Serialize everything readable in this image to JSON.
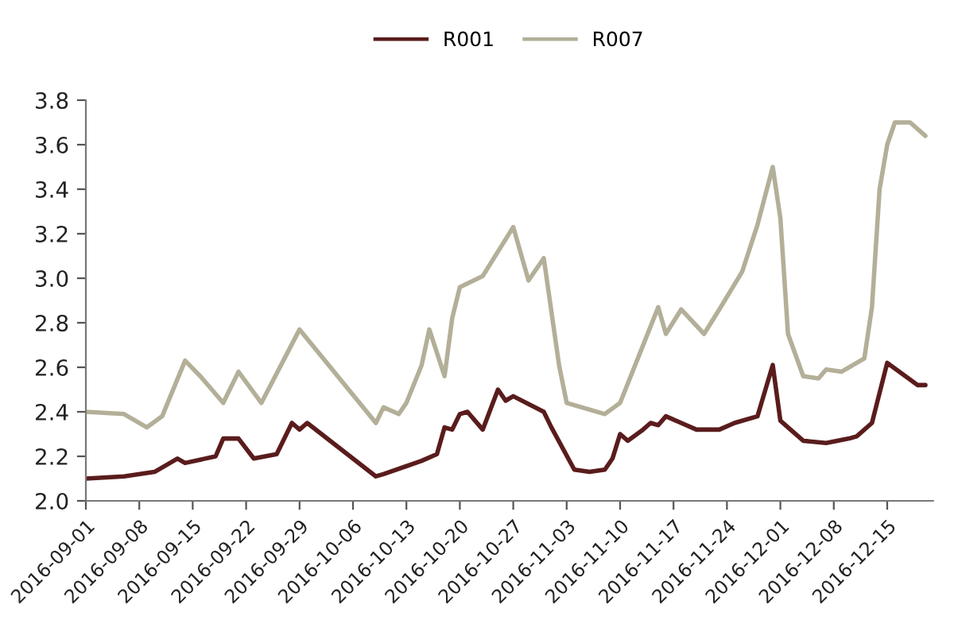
{
  "chart_data": {
    "type": "line",
    "xlim": [
      "2016-09-01",
      "2016-12-21"
    ],
    "xticks": [
      "2016-09-01",
      "2016-09-08",
      "2016-09-15",
      "2016-09-22",
      "2016-09-29",
      "2016-10-06",
      "2016-10-13",
      "2016-10-20",
      "2016-10-27",
      "2016-11-03",
      "2016-11-10",
      "2016-11-17",
      "2016-11-24",
      "2016-12-01",
      "2016-12-08",
      "2016-12-15"
    ],
    "ylim": [
      2.0,
      3.8
    ],
    "yticks": [
      {
        "value": 2.0,
        "label": "2.0"
      },
      2.2,
      2.4,
      2.6,
      2.8,
      {
        "value": 3.0,
        "label": "3.0"
      },
      3.2,
      3.4,
      3.6,
      3.8
    ],
    "legend": "top",
    "series": [
      {
        "name": "R001",
        "color": "#5a1c1c",
        "x": [
          "2016-09-01",
          "2016-09-06",
          "2016-09-10",
          "2016-09-13",
          "2016-09-14",
          "2016-09-18",
          "2016-09-19",
          "2016-09-21",
          "2016-09-23",
          "2016-09-26",
          "2016-09-28",
          "2016-09-29",
          "2016-09-30",
          "2016-10-09",
          "2016-10-10",
          "2016-10-15",
          "2016-10-17",
          "2016-10-18",
          "2016-10-19",
          "2016-10-20",
          "2016-10-21",
          "2016-10-23",
          "2016-10-25",
          "2016-10-26",
          "2016-10-27",
          "2016-10-31",
          "2016-11-01",
          "2016-11-04",
          "2016-11-06",
          "2016-11-08",
          "2016-11-09",
          "2016-11-10",
          "2016-11-11",
          "2016-11-13",
          "2016-11-14",
          "2016-11-15",
          "2016-11-16",
          "2016-11-18",
          "2016-11-20",
          "2016-11-23",
          "2016-11-25",
          "2016-11-28",
          "2016-11-30",
          "2016-12-01",
          "2016-12-02",
          "2016-12-04",
          "2016-12-07",
          "2016-12-10",
          "2016-12-11",
          "2016-12-13",
          "2016-12-15",
          "2016-12-17",
          "2016-12-19",
          "2016-12-20"
        ],
        "values": [
          2.1,
          2.11,
          2.13,
          2.19,
          2.17,
          2.2,
          2.28,
          2.28,
          2.19,
          2.21,
          2.35,
          2.32,
          2.35,
          2.11,
          2.12,
          2.18,
          2.21,
          2.33,
          2.32,
          2.39,
          2.4,
          2.32,
          2.5,
          2.45,
          2.47,
          2.4,
          2.33,
          2.14,
          2.13,
          2.14,
          2.19,
          2.3,
          2.27,
          2.32,
          2.35,
          2.34,
          2.38,
          2.35,
          2.32,
          2.32,
          2.35,
          2.38,
          2.61,
          2.36,
          2.33,
          2.27,
          2.26,
          2.28,
          2.29,
          2.35,
          2.62,
          2.57,
          2.52,
          2.52
        ]
      },
      {
        "name": "R007",
        "color": "#b3af98",
        "x": [
          "2016-09-01",
          "2016-09-06",
          "2016-09-09",
          "2016-09-11",
          "2016-09-14",
          "2016-09-16",
          "2016-09-19",
          "2016-09-21",
          "2016-09-24",
          "2016-09-29",
          "2016-10-09",
          "2016-10-10",
          "2016-10-12",
          "2016-10-13",
          "2016-10-15",
          "2016-10-16",
          "2016-10-18",
          "2016-10-19",
          "2016-10-20",
          "2016-10-23",
          "2016-10-27",
          "2016-10-29",
          "2016-10-31",
          "2016-11-02",
          "2016-11-03",
          "2016-11-08",
          "2016-11-10",
          "2016-11-15",
          "2016-11-16",
          "2016-11-18",
          "2016-11-21",
          "2016-11-23",
          "2016-11-26",
          "2016-11-28",
          "2016-11-30",
          "2016-12-01",
          "2016-12-02",
          "2016-12-04",
          "2016-12-06",
          "2016-12-07",
          "2016-12-09",
          "2016-12-12",
          "2016-12-13",
          "2016-12-14",
          "2016-12-15",
          "2016-12-16",
          "2016-12-18",
          "2016-12-20"
        ],
        "values": [
          2.4,
          2.39,
          2.33,
          2.38,
          2.63,
          2.56,
          2.44,
          2.58,
          2.44,
          2.77,
          2.35,
          2.42,
          2.39,
          2.44,
          2.61,
          2.77,
          2.56,
          2.82,
          2.96,
          3.01,
          3.23,
          2.99,
          3.09,
          2.61,
          2.44,
          2.39,
          2.44,
          2.87,
          2.75,
          2.86,
          2.75,
          2.86,
          3.03,
          3.24,
          3.5,
          3.27,
          2.75,
          2.56,
          2.55,
          2.59,
          2.58,
          2.64,
          2.87,
          3.4,
          3.6,
          3.7,
          3.7,
          3.64
        ]
      }
    ]
  }
}
